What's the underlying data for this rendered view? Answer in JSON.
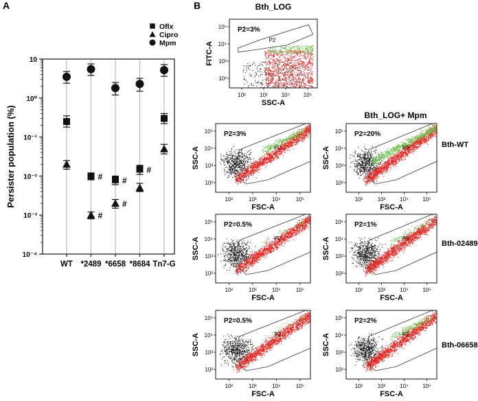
{
  "panels": {
    "a": "A",
    "b": "B"
  },
  "chart_data": [
    {
      "type": "scatter",
      "ylabel": "Persister population (%)",
      "yscale": "log",
      "ylim": [
        0.0001,
        10
      ],
      "y_ticks": [
        {
          "value": 10,
          "label": "10"
        },
        {
          "value": 1,
          "label": "10⁰"
        },
        {
          "value": 0.1,
          "label": "10⁻¹"
        },
        {
          "value": 0.01,
          "label": "10⁻²"
        },
        {
          "value": 0.001,
          "label": "10⁻³"
        },
        {
          "value": 0.0001,
          "label": "10⁻⁴"
        }
      ],
      "categories": [
        "WT",
        "*2489",
        "*6658",
        "*8684",
        "Tn7-G"
      ],
      "legend": {
        "placement": "top-right"
      },
      "series": [
        {
          "name": "Oflx",
          "marker": "square",
          "values": [
            0.25,
            0.01,
            0.008,
            0.015,
            0.3
          ],
          "err_low": [
            0.18,
            0.008,
            0.006,
            0.011,
            0.22
          ],
          "err_high": [
            0.35,
            0.012,
            0.01,
            0.019,
            0.4
          ],
          "sig": [
            false,
            true,
            true,
            true,
            false
          ]
        },
        {
          "name": "Cipro",
          "marker": "triangle",
          "values": [
            0.02,
            0.001,
            0.002,
            0.005,
            0.05
          ],
          "err_low": [
            0.015,
            0.0008,
            0.0015,
            0.004,
            0.037
          ],
          "err_high": [
            0.025,
            0.0012,
            0.0025,
            0.0065,
            0.065
          ],
          "sig": [
            false,
            true,
            true,
            false,
            false
          ]
        },
        {
          "name": "Mpm",
          "marker": "circle",
          "values": [
            3.5,
            5.5,
            1.8,
            2.3,
            5.2
          ],
          "err_low": [
            2.4,
            3.8,
            1.2,
            1.5,
            3.6
          ],
          "err_high": [
            4.8,
            7.5,
            2.5,
            3.2,
            7.2
          ],
          "sig": [
            false,
            false,
            false,
            false,
            false
          ]
        }
      ],
      "sig_symbol": "#"
    },
    {
      "type": "scatter",
      "kind": "flow-cytometry",
      "column_titles": [
        "Bth_LOG",
        "Bth_LOG+ Mpm"
      ],
      "row_labels": [
        "",
        "Bth-WT",
        "Bth-02489",
        "Bth-06658"
      ],
      "gate_name": "P2",
      "plots": [
        {
          "id": "top",
          "xlabel": "SSC-A",
          "ylabel": "FITC-A",
          "gate_label": "P2=3%",
          "green": 0.3
        },
        {
          "id": "r1c1",
          "xlabel": "FSC-A",
          "ylabel": "SSC-A",
          "gate_label": "P2=3%",
          "green": 0.35
        },
        {
          "id": "r1c2",
          "xlabel": "FSC-A",
          "ylabel": "SSC-A",
          "gate_label": "P2=20%",
          "green": 0.85
        },
        {
          "id": "r2c1",
          "xlabel": "FSC-A",
          "ylabel": "SSC-A",
          "gate_label": "P2=0.5%",
          "green": 0.05
        },
        {
          "id": "r2c2",
          "xlabel": "FSC-A",
          "ylabel": "SSC-A",
          "gate_label": "P2=1%",
          "green": 0.12
        },
        {
          "id": "r3c1",
          "xlabel": "FSC-A",
          "ylabel": "SSC-A",
          "gate_label": "P2=0.5%",
          "green": 0.05
        },
        {
          "id": "r3c2",
          "xlabel": "FSC-A",
          "ylabel": "SSC-A",
          "gate_label": "P2=2%",
          "green": 0.25
        }
      ],
      "x_ticks": [
        "10²",
        "10³",
        "10⁴",
        "10⁵"
      ],
      "y_ticks": [
        "10²",
        "10³",
        "10⁴",
        "10⁵"
      ]
    }
  ],
  "colors": {
    "black": "#111111",
    "red": "#e8231e",
    "green": "#6cc24a",
    "gate": "#333333"
  }
}
